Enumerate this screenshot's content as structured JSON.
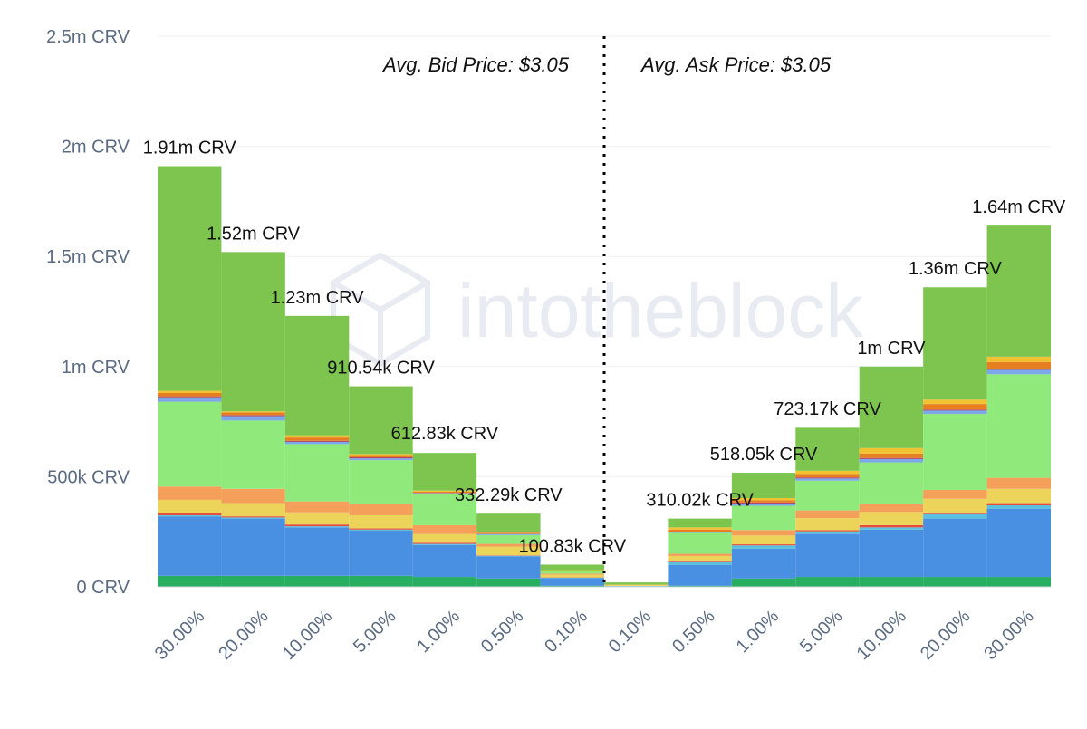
{
  "watermark": "intotheblock",
  "annotations": {
    "bid": "Avg. Bid Price: $3.05",
    "ask": "Avg. Ask Price: $3.05"
  },
  "colors": {
    "bg": "#ffffff",
    "grid": "#eef0f4",
    "divider": "#000000"
  },
  "chart_data": {
    "type": "bar",
    "stacked": true,
    "categories": [
      "30.00%",
      "20.00%",
      "10.00%",
      "5.00%",
      "1.00%",
      "0.50%",
      "0.10%",
      "0.10%",
      "0.50%",
      "1.00%",
      "5.00%",
      "10.00%",
      "20.00%",
      "30.00%"
    ],
    "yticks": [
      "0 CRV",
      "500k CRV",
      "1m CRV",
      "1.5m CRV",
      "2m CRV",
      "2.5m CRV"
    ],
    "ylim": [
      0,
      2500000
    ],
    "grid": true,
    "legend": "none",
    "totals": [
      1910000,
      1520000,
      1230000,
      910540,
      612830,
      332290,
      100830,
      20000,
      310020,
      518050,
      723170,
      1000000,
      1360000,
      1640000
    ],
    "total_labels": [
      "1.91m CRV",
      "1.52m CRV",
      "1.23m CRV",
      "910.54k CRV",
      "612.83k CRV",
      "332.29k CRV",
      "100.83k CRV",
      "",
      "310.02k CRV",
      "518.05k CRV",
      "723.17k CRV",
      "1m CRV",
      "1.36m CRV",
      "1.64m CRV"
    ],
    "series": [
      {
        "color": "#27ae60",
        "values": [
          50000,
          50000,
          50000,
          50000,
          45000,
          38000,
          5000,
          0,
          5000,
          38000,
          45000,
          45000,
          45000,
          45000
        ]
      },
      {
        "color": "#4a90e2",
        "values": [
          270000,
          260000,
          220000,
          205000,
          145000,
          100000,
          35000,
          3000,
          95000,
          135000,
          195000,
          215000,
          265000,
          310000
        ]
      },
      {
        "color": "#5bc0de",
        "values": [
          5000,
          5000,
          5000,
          5000,
          5000,
          3000,
          2000,
          1000,
          12000,
          15000,
          12000,
          10000,
          20000,
          15000
        ]
      },
      {
        "color": "#e74c3c",
        "values": [
          10000,
          5000,
          8000,
          5000,
          5000,
          2000,
          1000,
          0,
          3000,
          5000,
          5000,
          10000,
          5000,
          10000
        ]
      },
      {
        "color": "#ecd35a",
        "values": [
          60000,
          60000,
          55000,
          60000,
          40000,
          40000,
          12000,
          5000,
          25000,
          40000,
          55000,
          60000,
          65000,
          65000
        ]
      },
      {
        "color": "#f5a05a",
        "values": [
          60000,
          65000,
          50000,
          50000,
          40000,
          12000,
          5000,
          1000,
          10000,
          25000,
          35000,
          35000,
          40000,
          50000
        ]
      },
      {
        "color": "#90ea7b",
        "values": [
          385000,
          310000,
          260000,
          200000,
          140000,
          40000,
          10000,
          0,
          95000,
          110000,
          135000,
          190000,
          345000,
          470000
        ]
      },
      {
        "color": "#7aa8e8",
        "values": [
          20000,
          20000,
          10000,
          8000,
          5000,
          5000,
          2000,
          0,
          5000,
          10000,
          10000,
          15000,
          15000,
          20000
        ]
      },
      {
        "color": "#b34a6e",
        "values": [
          5000,
          5000,
          5000,
          5000,
          2000,
          0,
          0,
          0,
          0,
          5000,
          5000,
          5000,
          5000,
          5000
        ]
      },
      {
        "color": "#e67e22",
        "values": [
          15000,
          12000,
          15000,
          10000,
          5000,
          5000,
          2000,
          0,
          10000,
          10000,
          15000,
          20000,
          25000,
          30000
        ]
      },
      {
        "color": "#f1c232",
        "values": [
          10000,
          5000,
          10000,
          5000,
          5000,
          5000,
          2000,
          0,
          10000,
          10000,
          15000,
          25000,
          20000,
          25000
        ]
      },
      {
        "color": "#7ec550",
        "values": [
          1020000,
          723000,
          542000,
          307540,
          170830,
          82290,
          24830,
          10000,
          40020,
          115050,
          195170,
          370000,
          510000,
          595000
        ]
      }
    ]
  }
}
